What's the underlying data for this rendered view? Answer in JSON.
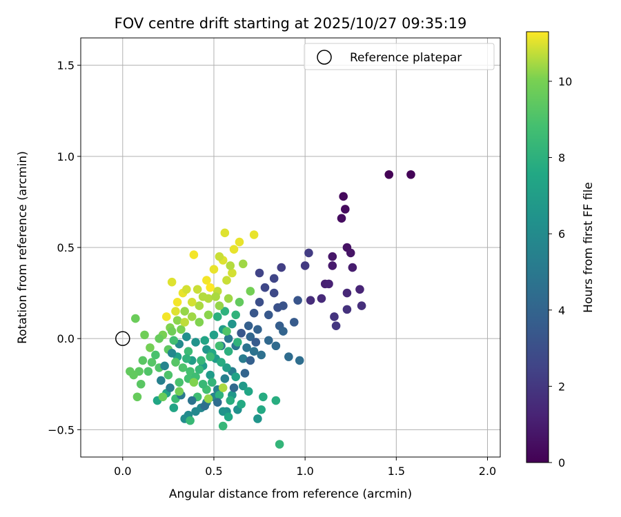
{
  "chart_data": {
    "type": "scatter",
    "title": "FOV centre drift starting at 2025/10/27 09:35:19",
    "xlabel": "Angular distance from reference (arcmin)",
    "ylabel": "Rotation from reference (arcmin)",
    "xlim": [
      -0.23,
      2.07
    ],
    "ylim": [
      -0.65,
      1.65
    ],
    "xticks": [
      0.0,
      0.5,
      1.0,
      1.5,
      2.0
    ],
    "xtick_labels": [
      "0.0",
      "0.5",
      "1.0",
      "1.5",
      "2.0"
    ],
    "yticks": [
      -0.5,
      0.0,
      0.5,
      1.0,
      1.5
    ],
    "ytick_labels": [
      "−0.5",
      "0.0",
      "0.5",
      "1.0",
      "1.5"
    ],
    "grid": true,
    "legend": {
      "placement": "top-right",
      "label": "Reference platepar"
    },
    "reference_point": {
      "x": 0.0,
      "y": 0.0
    },
    "colorbar": {
      "label": "Hours from first FF file",
      "range": [
        0,
        11.3
      ],
      "ticks": [
        0,
        2,
        4,
        6,
        8,
        10
      ],
      "tick_labels": [
        "0",
        "2",
        "4",
        "6",
        "8",
        "10"
      ],
      "colormap": "viridis"
    },
    "series": [
      {
        "name": "FOV centre positions",
        "points": [
          [
            1.46,
            0.9,
            0.05
          ],
          [
            1.58,
            0.9,
            0.1
          ],
          [
            1.21,
            0.78,
            0.3
          ],
          [
            1.22,
            0.71,
            0.35
          ],
          [
            1.2,
            0.66,
            0.4
          ],
          [
            1.23,
            0.5,
            0.6
          ],
          [
            1.25,
            0.47,
            0.7
          ],
          [
            1.15,
            0.45,
            0.8
          ],
          [
            1.15,
            0.4,
            0.9
          ],
          [
            1.26,
            0.39,
            1.0
          ],
          [
            1.11,
            0.3,
            1.1
          ],
          [
            1.13,
            0.3,
            1.2
          ],
          [
            1.3,
            0.27,
            1.3
          ],
          [
            1.23,
            0.25,
            1.4
          ],
          [
            1.09,
            0.22,
            1.5
          ],
          [
            1.03,
            0.21,
            1.6
          ],
          [
            1.31,
            0.18,
            1.7
          ],
          [
            1.23,
            0.16,
            1.8
          ],
          [
            1.16,
            0.12,
            1.9
          ],
          [
            1.17,
            0.07,
            2.0
          ],
          [
            1.0,
            0.4,
            2.1
          ],
          [
            1.02,
            0.47,
            2.2
          ],
          [
            0.87,
            0.39,
            2.3
          ],
          [
            0.75,
            0.36,
            2.5
          ],
          [
            0.83,
            0.33,
            2.6
          ],
          [
            0.78,
            0.28,
            2.7
          ],
          [
            0.83,
            0.25,
            2.8
          ],
          [
            0.75,
            0.2,
            3.0
          ],
          [
            0.85,
            0.17,
            3.1
          ],
          [
            0.88,
            0.18,
            3.2
          ],
          [
            0.96,
            0.21,
            3.3
          ],
          [
            0.72,
            0.14,
            3.4
          ],
          [
            0.8,
            0.13,
            3.5
          ],
          [
            0.94,
            0.09,
            3.6
          ],
          [
            0.86,
            0.07,
            3.7
          ],
          [
            0.69,
            0.07,
            3.8
          ],
          [
            0.74,
            0.05,
            3.9
          ],
          [
            0.88,
            0.04,
            4.0
          ],
          [
            0.7,
            0.01,
            4.1
          ],
          [
            0.8,
            -0.01,
            4.2
          ],
          [
            0.84,
            -0.04,
            4.3
          ],
          [
            0.91,
            -0.1,
            4.4
          ],
          [
            0.97,
            -0.12,
            4.5
          ],
          [
            0.76,
            -0.09,
            4.6
          ],
          [
            0.72,
            -0.07,
            4.7
          ],
          [
            0.68,
            -0.05,
            4.8
          ],
          [
            0.62,
            -0.04,
            4.9
          ],
          [
            0.58,
            0.0,
            5.0
          ],
          [
            0.54,
            -0.04,
            5.1
          ],
          [
            0.66,
            -0.11,
            5.2
          ],
          [
            0.6,
            -0.18,
            5.3
          ],
          [
            0.56,
            -0.22,
            5.4
          ],
          [
            0.52,
            -0.28,
            5.5
          ],
          [
            0.5,
            -0.32,
            5.6
          ],
          [
            0.46,
            -0.35,
            5.7
          ],
          [
            0.43,
            -0.38,
            5.8
          ],
          [
            0.4,
            -0.4,
            5.9
          ],
          [
            0.36,
            -0.42,
            6.0
          ],
          [
            0.34,
            -0.44,
            6.1
          ],
          [
            0.57,
            -0.4,
            6.2
          ],
          [
            0.63,
            -0.39,
            6.3
          ],
          [
            0.55,
            -0.4,
            6.4
          ],
          [
            0.74,
            -0.44,
            6.5
          ],
          [
            0.6,
            -0.31,
            6.6
          ],
          [
            0.66,
            -0.26,
            6.7
          ],
          [
            0.48,
            -0.2,
            6.8
          ],
          [
            0.44,
            -0.15,
            6.9
          ],
          [
            0.38,
            -0.12,
            7.0
          ],
          [
            0.3,
            -0.1,
            7.1
          ],
          [
            0.24,
            -0.3,
            7.2
          ],
          [
            0.28,
            -0.38,
            7.3
          ],
          [
            0.19,
            -0.34,
            7.4
          ],
          [
            0.58,
            -0.43,
            7.5
          ],
          [
            0.76,
            -0.39,
            7.6
          ],
          [
            0.77,
            -0.32,
            7.7
          ],
          [
            0.84,
            -0.34,
            7.8
          ],
          [
            0.52,
            0.12,
            7.9
          ],
          [
            0.56,
            0.15,
            8.0
          ],
          [
            0.62,
            0.13,
            8.1
          ],
          [
            0.86,
            -0.58,
            8.2
          ],
          [
            0.55,
            -0.48,
            8.3
          ],
          [
            0.37,
            -0.45,
            8.4
          ],
          [
            0.29,
            -0.33,
            8.5
          ],
          [
            0.41,
            -0.32,
            8.6
          ],
          [
            0.46,
            -0.28,
            8.7
          ],
          [
            0.36,
            -0.22,
            8.8
          ],
          [
            0.31,
            -0.24,
            8.9
          ],
          [
            0.25,
            -0.2,
            9.0
          ],
          [
            0.2,
            -0.16,
            9.1
          ],
          [
            0.16,
            -0.13,
            9.2
          ],
          [
            0.11,
            -0.12,
            9.3
          ],
          [
            0.09,
            -0.18,
            9.4
          ],
          [
            0.04,
            -0.18,
            9.5
          ],
          [
            0.08,
            -0.32,
            9.6
          ],
          [
            0.07,
            0.11,
            9.7
          ],
          [
            0.12,
            0.02,
            9.8
          ],
          [
            0.15,
            -0.05,
            9.9
          ],
          [
            0.22,
            0.02,
            10.0
          ],
          [
            0.26,
            0.06,
            10.1
          ],
          [
            0.3,
            0.1,
            10.2
          ],
          [
            0.34,
            0.15,
            10.3
          ],
          [
            0.38,
            0.12,
            10.4
          ],
          [
            0.42,
            0.18,
            10.5
          ],
          [
            0.47,
            0.22,
            10.6
          ],
          [
            0.52,
            0.26,
            10.7
          ],
          [
            0.57,
            0.32,
            10.8
          ],
          [
            0.6,
            0.36,
            10.9
          ],
          [
            0.55,
            0.43,
            11.0
          ],
          [
            0.56,
            0.58,
            11.0
          ],
          [
            0.61,
            0.49,
            11.1
          ],
          [
            0.64,
            0.53,
            11.1
          ],
          [
            0.72,
            0.57,
            11.1
          ],
          [
            0.39,
            0.46,
            11.2
          ],
          [
            0.46,
            0.32,
            11.2
          ],
          [
            0.48,
            0.28,
            11.3
          ],
          [
            0.3,
            0.2,
            11.2
          ],
          [
            0.33,
            0.25,
            11.1
          ],
          [
            0.27,
            0.31,
            11.0
          ],
          [
            0.35,
            0.27,
            10.9
          ],
          [
            0.41,
            0.27,
            10.8
          ],
          [
            0.44,
            0.23,
            10.6
          ],
          [
            0.51,
            0.23,
            10.5
          ],
          [
            0.58,
            0.22,
            10.4
          ],
          [
            0.53,
            0.18,
            10.3
          ],
          [
            0.47,
            0.13,
            10.2
          ],
          [
            0.42,
            0.09,
            10.1
          ],
          [
            0.32,
            0.05,
            10.0
          ],
          [
            0.27,
            0.04,
            9.8
          ],
          [
            0.2,
            0.0,
            9.6
          ],
          [
            0.25,
            -0.06,
            9.4
          ],
          [
            0.29,
            -0.13,
            9.2
          ],
          [
            0.33,
            -0.16,
            9.0
          ],
          [
            0.37,
            -0.18,
            8.8
          ],
          [
            0.4,
            -0.21,
            8.6
          ],
          [
            0.44,
            -0.25,
            8.4
          ],
          [
            0.49,
            -0.24,
            8.2
          ],
          [
            0.53,
            -0.31,
            8.0
          ],
          [
            0.59,
            -0.34,
            7.8
          ],
          [
            0.65,
            -0.36,
            7.6
          ],
          [
            0.69,
            -0.29,
            7.4
          ],
          [
            0.62,
            -0.21,
            7.2
          ],
          [
            0.57,
            -0.16,
            7.0
          ],
          [
            0.51,
            -0.11,
            6.8
          ],
          [
            0.46,
            -0.06,
            6.6
          ],
          [
            0.4,
            -0.02,
            6.4
          ],
          [
            0.35,
            0.01,
            6.2
          ],
          [
            0.31,
            -0.03,
            6.0
          ],
          [
            0.27,
            -0.08,
            5.8
          ],
          [
            0.23,
            -0.15,
            5.6
          ],
          [
            0.21,
            -0.23,
            5.4
          ],
          [
            0.26,
            -0.27,
            5.2
          ],
          [
            0.32,
            -0.31,
            5.0
          ],
          [
            0.38,
            -0.34,
            4.8
          ],
          [
            0.45,
            -0.37,
            4.6
          ],
          [
            0.52,
            -0.35,
            4.4
          ],
          [
            0.61,
            -0.27,
            4.2
          ],
          [
            0.67,
            -0.19,
            4.0
          ],
          [
            0.7,
            -0.12,
            3.8
          ],
          [
            0.73,
            -0.02,
            3.6
          ],
          [
            0.65,
            0.03,
            3.4
          ],
          [
            0.6,
            0.08,
            6.5
          ],
          [
            0.55,
            0.05,
            6.9
          ],
          [
            0.5,
            0.02,
            7.1
          ],
          [
            0.45,
            -0.01,
            7.3
          ],
          [
            0.49,
            -0.08,
            7.5
          ],
          [
            0.54,
            -0.13,
            7.7
          ],
          [
            0.58,
            -0.07,
            7.9
          ],
          [
            0.63,
            -0.02,
            8.1
          ],
          [
            0.43,
            -0.12,
            8.3
          ],
          [
            0.36,
            -0.07,
            8.5
          ],
          [
            0.28,
            -0.01,
            8.7
          ],
          [
            0.18,
            -0.09,
            8.9
          ],
          [
            0.14,
            -0.18,
            9.1
          ],
          [
            0.1,
            -0.25,
            9.3
          ],
          [
            0.06,
            -0.2,
            9.5
          ],
          [
            0.22,
            -0.32,
            9.7
          ],
          [
            0.31,
            -0.29,
            9.9
          ],
          [
            0.39,
            -0.24,
            10.1
          ],
          [
            0.47,
            -0.33,
            10.3
          ],
          [
            0.55,
            -0.27,
            10.5
          ],
          [
            0.34,
            0.09,
            10.7
          ],
          [
            0.38,
            0.2,
            10.9
          ],
          [
            0.29,
            0.15,
            11.0
          ],
          [
            0.24,
            0.12,
            11.2
          ],
          [
            0.5,
            0.38,
            11.1
          ],
          [
            0.53,
            0.45,
            10.8
          ],
          [
            0.59,
            0.4,
            10.6
          ],
          [
            0.66,
            0.41,
            10.4
          ],
          [
            0.7,
            0.26,
            9.9
          ],
          [
            0.64,
            0.2,
            9.5
          ],
          [
            0.57,
            0.04,
            9.1
          ],
          [
            0.53,
            -0.04,
            8.7
          ],
          [
            0.48,
            -0.1,
            8.5
          ],
          [
            0.42,
            -0.17,
            8.3
          ],
          [
            0.35,
            -0.11,
            8.1
          ]
        ]
      }
    ]
  }
}
